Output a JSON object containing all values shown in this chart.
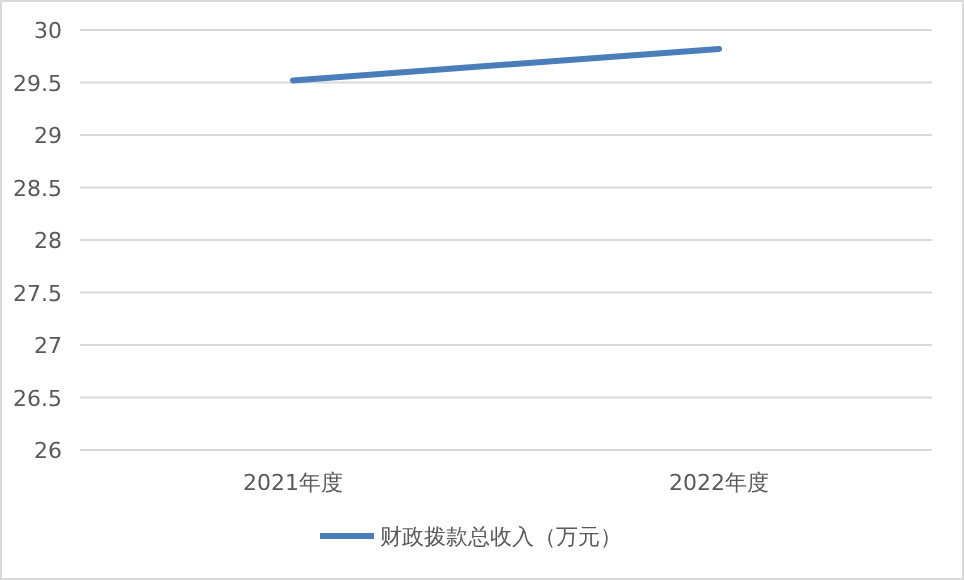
{
  "chart_data": {
    "type": "line",
    "categories": [
      "2021年度",
      "2022年度"
    ],
    "series": [
      {
        "name": "财政拨款总收入（万元）",
        "color": "#4a7ebb",
        "values": [
          29.52,
          29.82
        ]
      }
    ],
    "ylim": [
      26,
      30
    ],
    "yticks": [
      26,
      26.5,
      27,
      27.5,
      28,
      28.5,
      29,
      29.5,
      30
    ],
    "grid": "y",
    "legend": "bottom",
    "marker": "none",
    "line_style": "solid"
  }
}
